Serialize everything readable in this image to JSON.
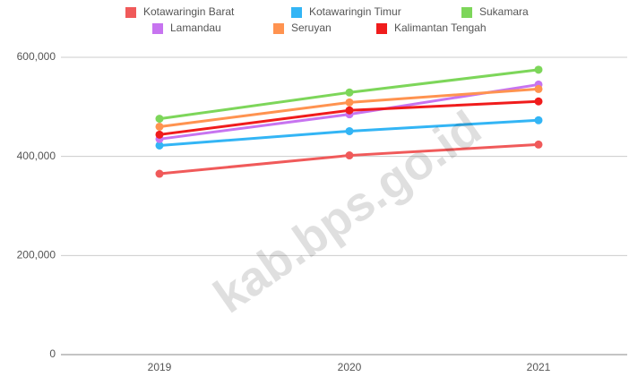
{
  "chart_data": {
    "type": "line",
    "watermark": "kab.bps.go.id",
    "categories": [
      "2019",
      "2020",
      "2021"
    ],
    "series": [
      {
        "name": "Kotawaringin Barat",
        "color": "#f05a5a",
        "values": [
          365000,
          402000,
          424000
        ]
      },
      {
        "name": "Kotawaringin Timur",
        "color": "#33b5f5",
        "values": [
          422000,
          451000,
          473000
        ]
      },
      {
        "name": "Sukamara",
        "color": "#7dd65a",
        "values": [
          476000,
          529000,
          575000
        ]
      },
      {
        "name": "Lamandau",
        "color": "#c774f0",
        "values": [
          435000,
          485000,
          545000
        ]
      },
      {
        "name": "Seruyan",
        "color": "#ff9350",
        "values": [
          460000,
          509000,
          536000
        ]
      },
      {
        "name": "Kalimantan Tengah",
        "color": "#f01c1c",
        "values": [
          444000,
          493000,
          511000
        ]
      }
    ],
    "ylim": [
      0,
      600000
    ],
    "yticks": [
      0,
      {
        "value": 200000,
        "label": "200,000"
      },
      {
        "value": 400000,
        "label": "400,000"
      },
      {
        "value": 600000,
        "label": "600,000"
      }
    ],
    "grid": true
  }
}
